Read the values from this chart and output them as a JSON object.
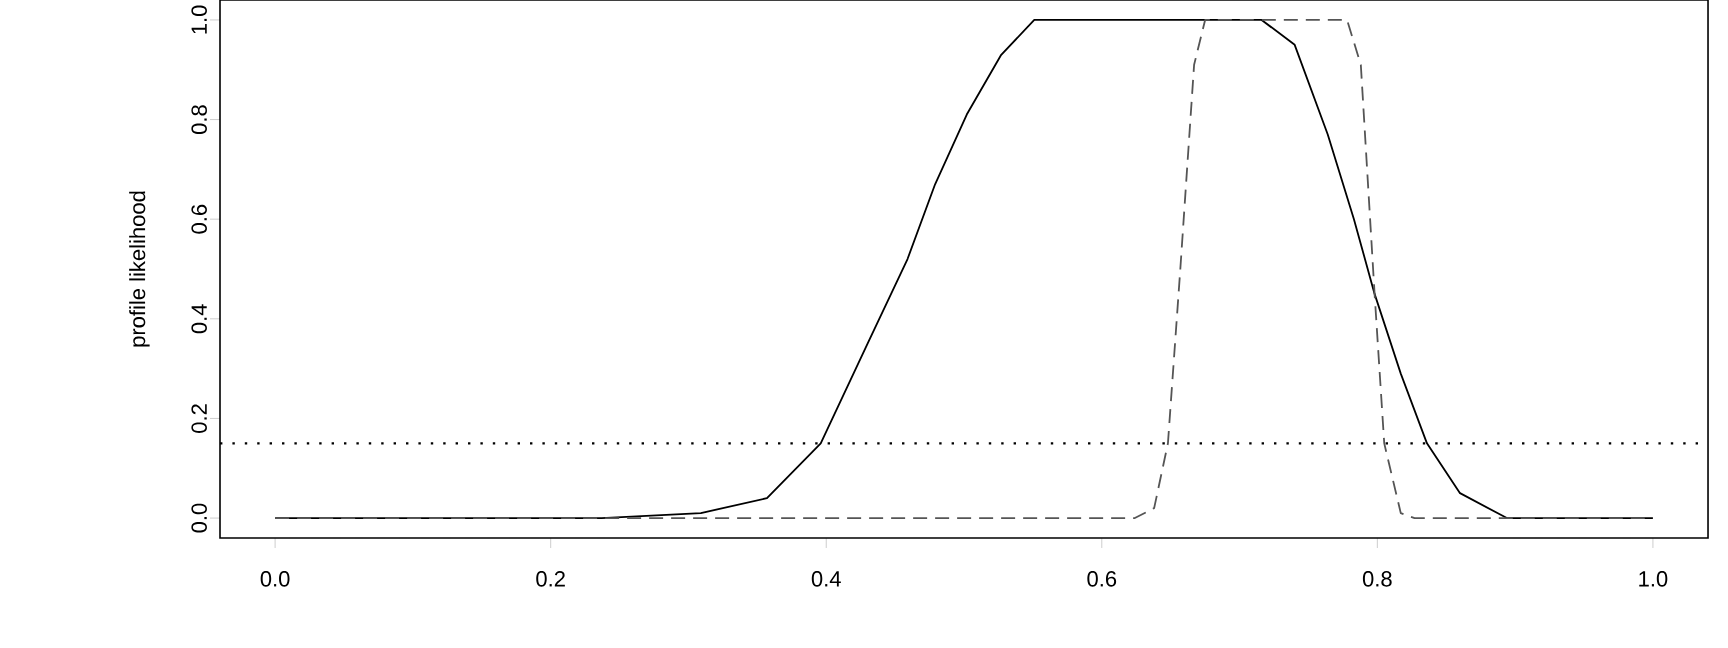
{
  "chart_data": {
    "type": "line",
    "ylabel": "profile likelihood",
    "xlim": [
      -0.04,
      1.04
    ],
    "ylim": [
      -0.04,
      1.04
    ],
    "xticks": [
      {
        "value": 0,
        "label": "0.0"
      },
      0.2,
      0.4,
      0.6,
      0.8,
      {
        "value": 1,
        "label": "1.0"
      }
    ],
    "yticks": [
      {
        "value": 0,
        "label": "0.0"
      },
      0.2,
      0.4,
      0.6,
      0.8,
      {
        "value": 1,
        "label": "1.0"
      }
    ],
    "grid": false,
    "marker": "none",
    "ref_lines": [
      {
        "axis": "y",
        "value": 0.15,
        "color": "#000000",
        "line_style": "dotted"
      }
    ],
    "series": [
      {
        "color": "#000000",
        "line_style": "solid",
        "x": [
          0,
          0.237,
          0.309,
          0.357,
          0.396,
          0.43,
          0.459,
          0.479,
          0.502,
          0.527,
          0.551,
          0.716,
          0.74,
          0.764,
          0.783,
          0.798,
          0.817,
          0.836,
          0.86,
          0.894,
          1.0
        ],
        "values": [
          0,
          0,
          0.01,
          0.04,
          0.15,
          0.35,
          0.52,
          0.67,
          0.81,
          0.93,
          1.0,
          1.0,
          0.95,
          0.77,
          0.6,
          0.45,
          0.29,
          0.15,
          0.05,
          0,
          0
        ]
      },
      {
        "color": "#555555",
        "line_style": "dashed",
        "x": [
          0,
          0.624,
          0.638,
          0.648,
          0.657,
          0.667,
          0.675,
          0.778,
          0.788,
          0.798,
          0.805,
          0.817,
          0.827,
          1.0
        ],
        "values": [
          0,
          0,
          0.02,
          0.15,
          0.5,
          0.91,
          1.0,
          1.0,
          0.91,
          0.45,
          0.15,
          0.01,
          0,
          0
        ]
      }
    ]
  }
}
